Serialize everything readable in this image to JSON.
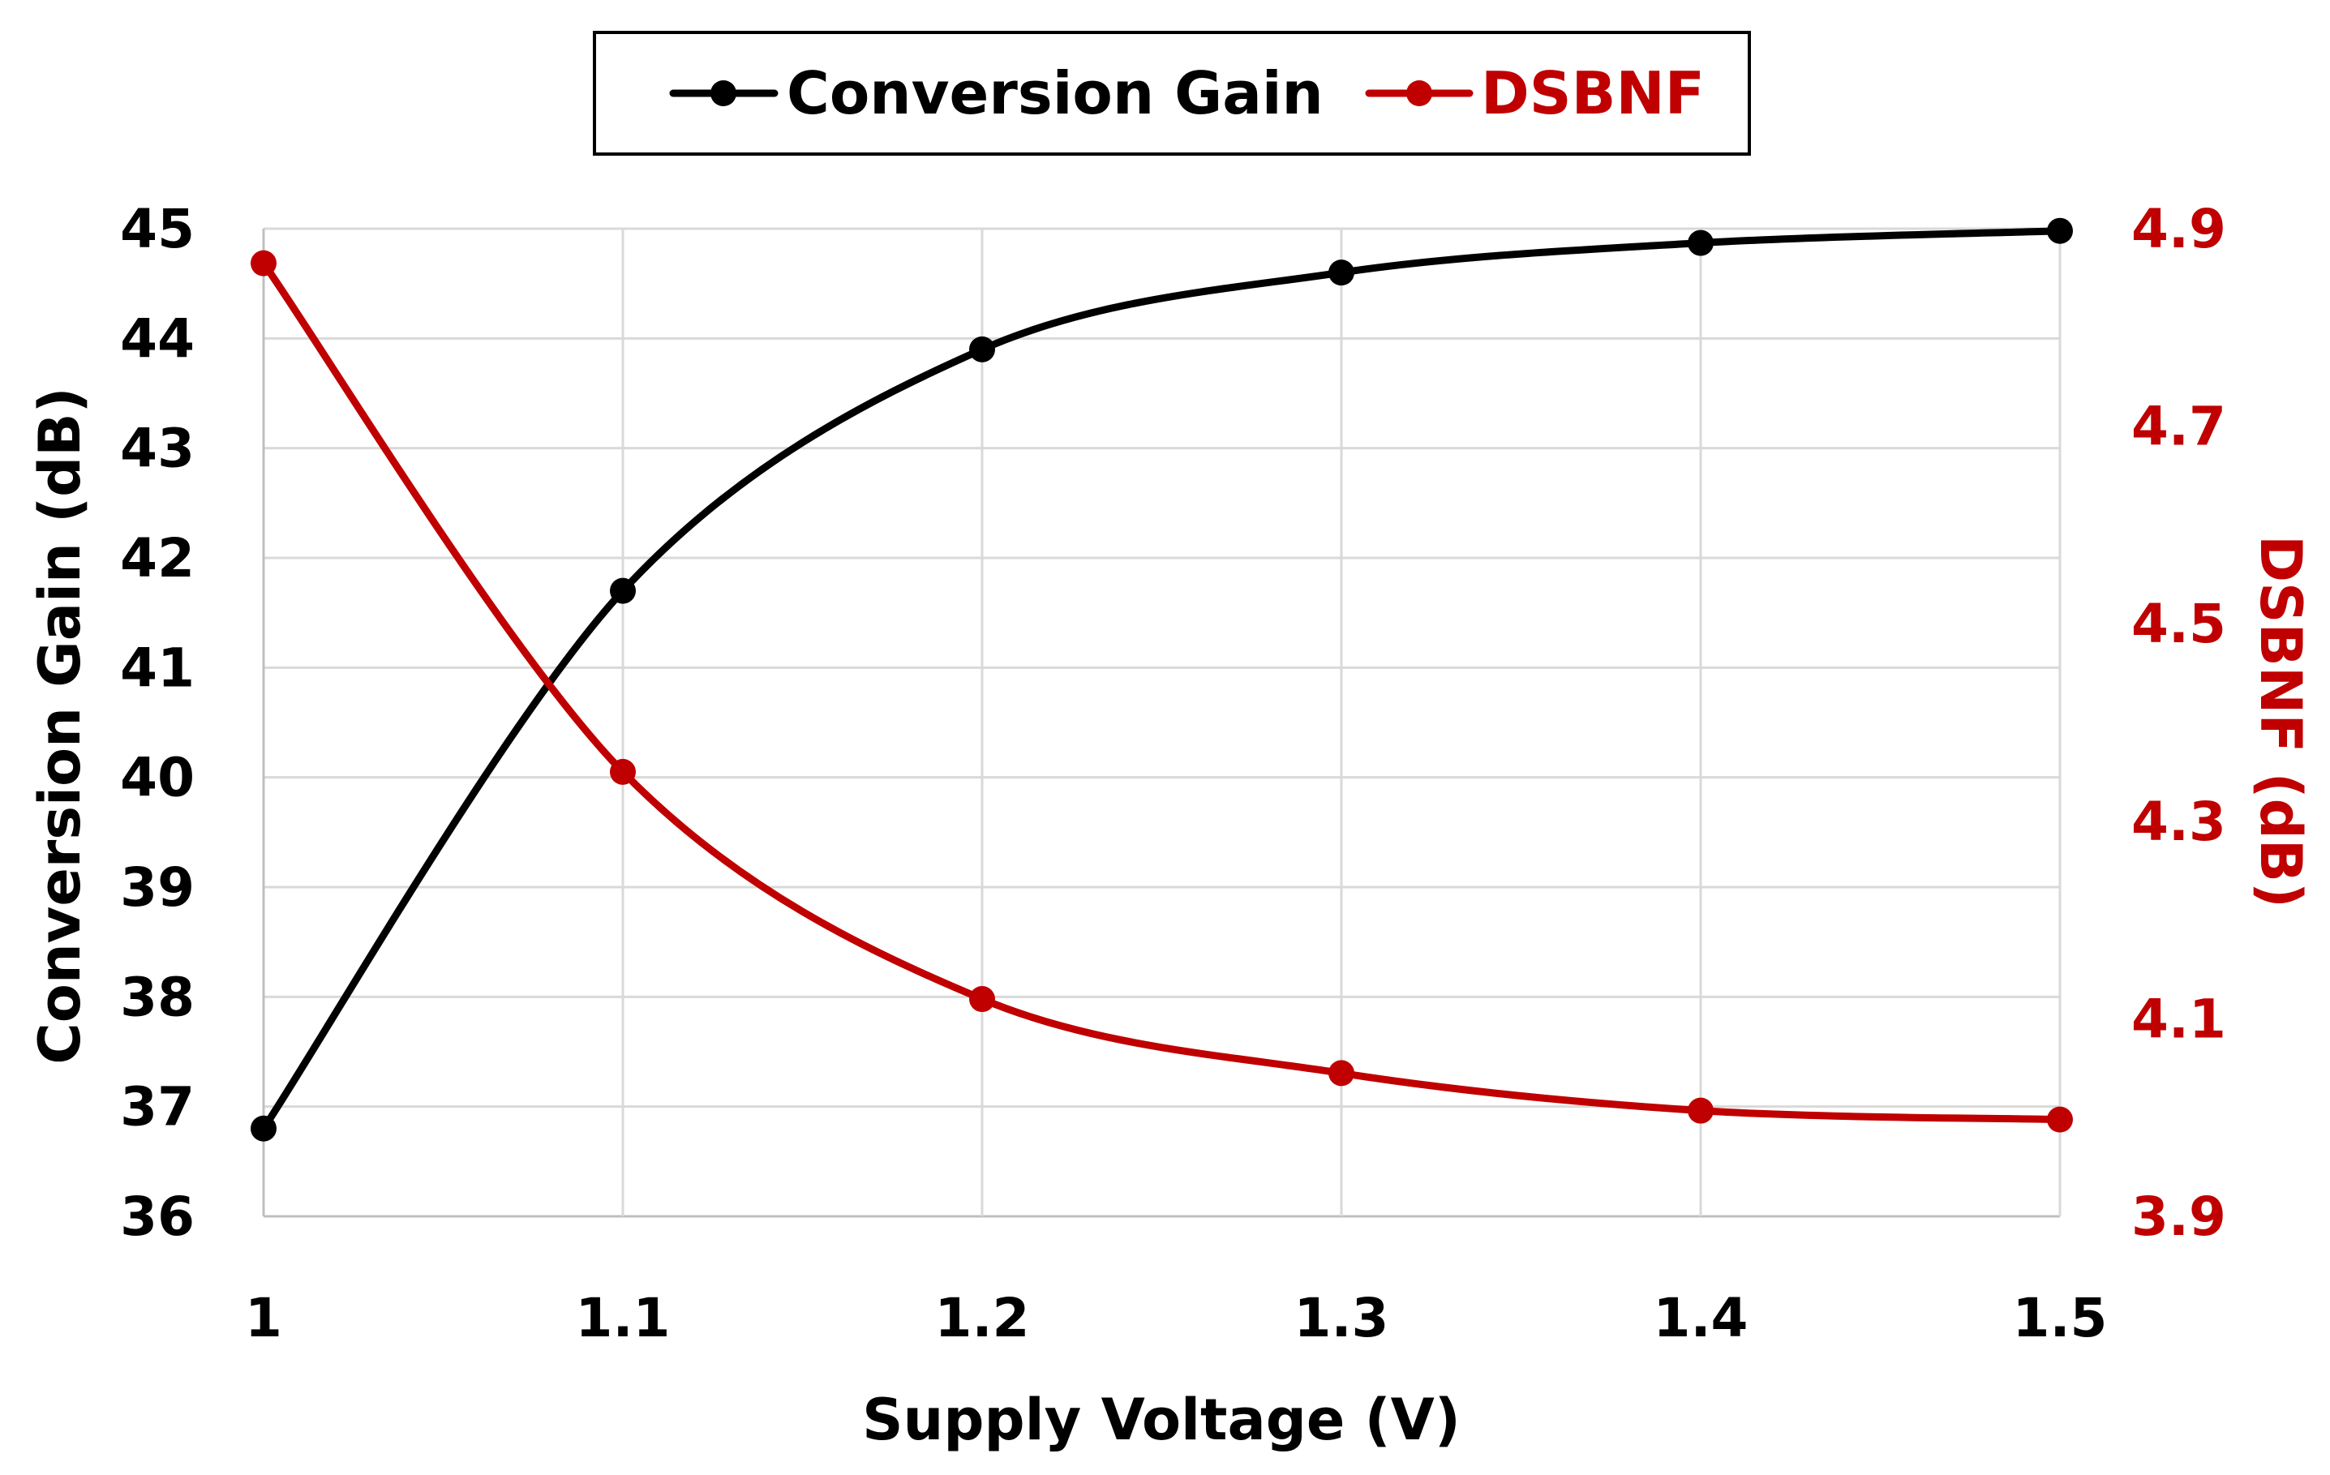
{
  "chart_data": {
    "type": "line",
    "x": [
      1,
      1.1,
      1.2,
      1.3,
      1.4,
      1.5
    ],
    "x_tick_labels": [
      "1",
      "1.1",
      "1.2",
      "1.3",
      "1.4",
      "1.5"
    ],
    "xlabel": "Supply Voltage (V)",
    "xlim": [
      1,
      1.5
    ],
    "y_left": {
      "label": "Conversion Gain (dB)",
      "lim": [
        36,
        45
      ],
      "ticks": [
        36,
        37,
        38,
        39,
        40,
        41,
        42,
        43,
        44,
        45
      ],
      "tick_labels": [
        "36",
        "37",
        "38",
        "39",
        "40",
        "41",
        "42",
        "43",
        "44",
        "45"
      ]
    },
    "y_right": {
      "label": "DSBNF (dB)",
      "lim": [
        3.9,
        4.9
      ],
      "ticks": [
        3.9,
        4.1,
        4.3,
        4.5,
        4.7,
        4.9
      ],
      "tick_labels": [
        "3.9",
        "4.1",
        "4.3",
        "4.5",
        "4.7",
        "4.9"
      ]
    },
    "grid": true,
    "legend_position": "top-center",
    "series": [
      {
        "name": "Conversion Gain",
        "axis": "left",
        "color": "#000000",
        "values": [
          36.8,
          41.7,
          43.9,
          44.6,
          44.87,
          44.98
        ]
      },
      {
        "name": "DSBNF",
        "axis": "right",
        "color": "#C00000",
        "values": [
          4.865,
          4.35,
          4.12,
          4.045,
          4.007,
          3.998
        ]
      }
    ]
  }
}
